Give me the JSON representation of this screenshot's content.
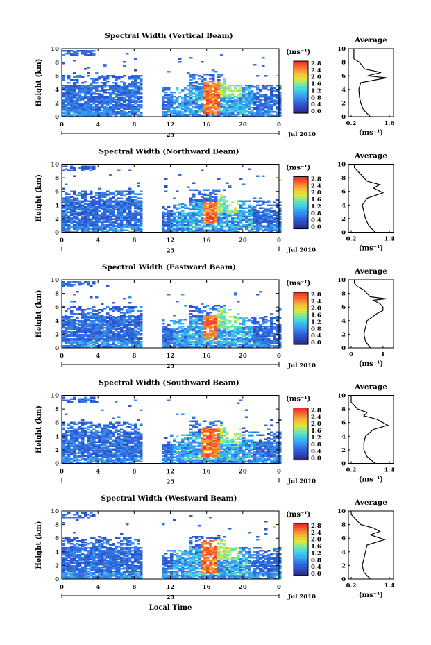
{
  "chart_data": [
    {
      "type": "heatmap",
      "title": "Spectral Width (Vertical Beam)",
      "ylabel": "Height (km)",
      "yticks": [
        "0",
        "2",
        "4",
        "6",
        "8",
        "10"
      ],
      "xticks": [
        "0",
        "4",
        "8",
        "12",
        "16",
        "20",
        "0"
      ],
      "day_label": "25",
      "date_label": "Jul 2010",
      "ylim": [
        0,
        10
      ],
      "xlim": [
        0,
        24
      ],
      "colorbar_unit": "(ms⁻¹)",
      "colorbar_ticks": [
        "0.0",
        "0.4",
        "0.8",
        "1.2",
        "1.6",
        "2.0",
        "2.4",
        "2.8"
      ],
      "colorbar_range": [
        0,
        2.8
      ],
      "profile_title": "Average",
      "profile_xlabel": "(ms⁻¹)",
      "profile_xticks": [
        "0.2",
        "1.6"
      ],
      "profile_xlim": [
        0.2,
        1.6
      ],
      "profile": {
        "height": [
          0,
          1,
          2,
          3,
          4,
          5,
          5.7,
          6,
          6.5,
          7,
          7.5,
          8,
          8.5,
          9,
          10
        ],
        "value": [
          0.9,
          0.65,
          0.55,
          0.5,
          0.48,
          0.55,
          1.5,
          0.8,
          1.3,
          0.7,
          0.6,
          0.5,
          0.3,
          0.3,
          0.3
        ]
      },
      "gap_hours": [
        8.8,
        11.0
      ],
      "hot": {
        "t": [
          15.5,
          17.3
        ],
        "h": [
          0.5,
          5.5
        ]
      }
    },
    {
      "type": "heatmap",
      "title": "Spectral Width (Northward Beam)",
      "ylabel": "Height (km)",
      "yticks": [
        "0",
        "2",
        "4",
        "6",
        "8",
        "10"
      ],
      "xticks": [
        "0",
        "4",
        "8",
        "12",
        "16",
        "20",
        "0"
      ],
      "day_label": "25",
      "date_label": "Jul 2010",
      "ylim": [
        0,
        10
      ],
      "xlim": [
        0,
        24
      ],
      "colorbar_unit": "(ms⁻¹)",
      "colorbar_ticks": [
        "0.0",
        "0.4",
        "0.8",
        "1.2",
        "1.6",
        "2.0",
        "2.4",
        "2.8"
      ],
      "colorbar_range": [
        0,
        2.8
      ],
      "profile_title": "Average",
      "profile_xlabel": "(ms⁻¹)",
      "profile_xticks": [
        "0.2",
        "1.4"
      ],
      "profile_xlim": [
        0.2,
        1.4
      ],
      "profile": {
        "height": [
          0,
          1,
          2,
          3,
          4,
          5,
          5.8,
          6.5,
          7,
          7.5,
          8,
          8.5,
          9,
          9.5,
          10
        ],
        "value": [
          0.95,
          0.75,
          0.65,
          0.6,
          0.55,
          0.7,
          1.2,
          0.9,
          1.1,
          0.7,
          0.6,
          0.5,
          0.4,
          0.3,
          0.3
        ]
      },
      "gap_hours": [
        8.8,
        11.0
      ],
      "hot": {
        "t": [
          15.5,
          17.0
        ],
        "h": [
          1.5,
          4.5
        ]
      }
    },
    {
      "type": "heatmap",
      "title": "Spectral Width (Eastward Beam)",
      "ylabel": "Height (km)",
      "yticks": [
        "0",
        "2",
        "4",
        "6",
        "8",
        "10"
      ],
      "xticks": [
        "0",
        "4",
        "8",
        "12",
        "16",
        "20",
        "0"
      ],
      "day_label": "25",
      "date_label": "Jul 2010",
      "ylim": [
        0,
        10
      ],
      "xlim": [
        0,
        24
      ],
      "colorbar_unit": "(ms⁻¹)",
      "colorbar_ticks": [
        "0.0",
        "0.4",
        "0.8",
        "1.2",
        "1.6",
        "2.0",
        "2.4",
        "2.8"
      ],
      "colorbar_range": [
        0,
        2.8
      ],
      "profile_title": "Average",
      "profile_xlabel": "(ms⁻¹)",
      "profile_xticks": [
        "0",
        "1"
      ],
      "profile_xlim": [
        0,
        1.2
      ],
      "profile": {
        "height": [
          0,
          1,
          2,
          3,
          4,
          5,
          5.5,
          6,
          6.5,
          7,
          7.2,
          7.5,
          8,
          8.5,
          9,
          9.5,
          10
        ],
        "value": [
          0.6,
          0.45,
          0.4,
          0.45,
          0.5,
          0.8,
          1.0,
          1.0,
          0.9,
          0.7,
          1.1,
          0.6,
          0.5,
          0.4,
          0.2,
          0.1,
          0.1
        ]
      },
      "gap_hours": [
        8.8,
        11.0
      ],
      "hot": {
        "t": [
          15.5,
          17.0
        ],
        "h": [
          1.5,
          5.0
        ]
      }
    },
    {
      "type": "heatmap",
      "title": "Spectral Width (Southward Beam)",
      "ylabel": "Height (km)",
      "yticks": [
        "0",
        "2",
        "4",
        "6",
        "8",
        "10"
      ],
      "xticks": [
        "0",
        "4",
        "8",
        "12",
        "16",
        "20",
        "0"
      ],
      "day_label": "25",
      "date_label": "Jul 2010",
      "ylim": [
        0,
        10
      ],
      "xlim": [
        0,
        24
      ],
      "colorbar_unit": "(ms⁻¹)",
      "colorbar_ticks": [
        "0.0",
        "0.4",
        "0.8",
        "1.2",
        "1.6",
        "2.0",
        "2.4",
        "2.8"
      ],
      "colorbar_range": [
        0,
        2.8
      ],
      "profile_title": "Average",
      "profile_xlabel": "(ms⁻¹)",
      "profile_xticks": [
        "0.2",
        "1.4"
      ],
      "profile_xlim": [
        0.2,
        1.4
      ],
      "profile": {
        "height": [
          0,
          1,
          2,
          3,
          4,
          5,
          5.6,
          6,
          6.5,
          7,
          7.5,
          8,
          8.5,
          9,
          10
        ],
        "value": [
          0.95,
          0.7,
          0.6,
          0.6,
          0.65,
          0.9,
          1.35,
          1.2,
          1.0,
          0.6,
          0.7,
          0.4,
          0.3,
          0.2,
          0.2
        ]
      },
      "gap_hours": [
        8.8,
        11.0
      ],
      "hot": {
        "t": [
          15.3,
          17.2
        ],
        "h": [
          1.0,
          5.5
        ]
      }
    },
    {
      "type": "heatmap",
      "title": "Spectral Width (Westward Beam)",
      "ylabel": "Height (km)",
      "yticks": [
        "0",
        "2",
        "4",
        "6",
        "8",
        "10"
      ],
      "xticks": [
        "0",
        "4",
        "8",
        "12",
        "16",
        "20",
        "0"
      ],
      "day_label": "25",
      "date_label": "Jul 2010",
      "xlabel": "Local Time",
      "ylim": [
        0,
        10
      ],
      "xlim": [
        0,
        24
      ],
      "colorbar_unit": "(ms⁻¹)",
      "colorbar_ticks": [
        "0.0",
        "0.4",
        "0.8",
        "1.2",
        "1.6",
        "2.0",
        "2.4",
        "2.8"
      ],
      "colorbar_range": [
        0,
        2.8
      ],
      "profile_title": "Average",
      "profile_xlabel": "(ms⁻¹)",
      "profile_xticks": [
        "0.2",
        "1.4"
      ],
      "profile_xlim": [
        0.2,
        1.4
      ],
      "profile": {
        "height": [
          0,
          1,
          2,
          3,
          4,
          5,
          5.8,
          6.5,
          7,
          7.5,
          8,
          8.5,
          9,
          9.5,
          10
        ],
        "value": [
          0.8,
          0.6,
          0.55,
          0.6,
          0.65,
          0.7,
          1.25,
          0.8,
          1.1,
          0.9,
          0.5,
          0.4,
          0.3,
          0.2,
          0.2
        ]
      },
      "gap_hours": [
        8.8,
        11.0
      ],
      "hot": {
        "t": [
          15.3,
          17.0
        ],
        "h": [
          1.0,
          6.0
        ]
      }
    }
  ]
}
